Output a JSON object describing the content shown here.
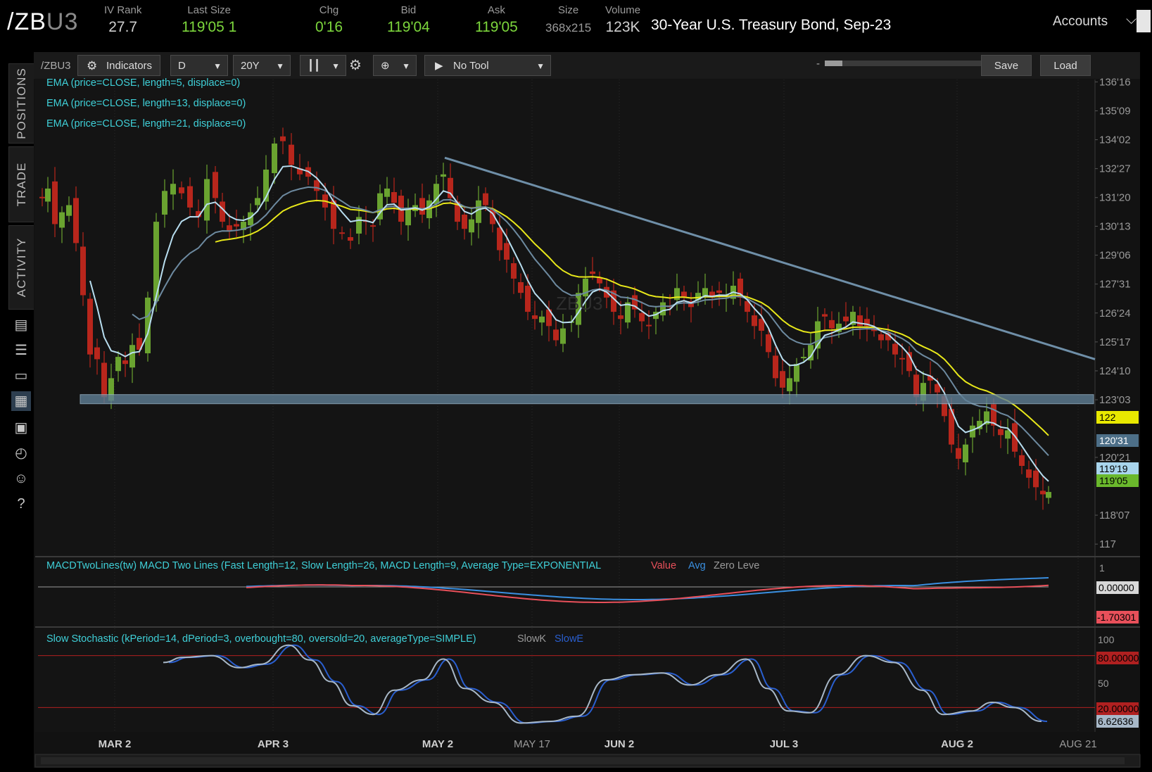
{
  "header": {
    "symbol_main": "/ZB",
    "symbol_suffix": "U3",
    "quotes": [
      {
        "label": "IV Rank",
        "value": "27.7",
        "color": "#cfcfcf"
      },
      {
        "label": "Last Size",
        "value": "119'05 1",
        "color": "#7cd63c"
      },
      {
        "label": "Chg",
        "value": "0'16",
        "color": "#7cd63c"
      },
      {
        "label": "Bid",
        "value": "119'04",
        "color": "#7cd63c"
      },
      {
        "label": "Ask",
        "value": "119'05",
        "color": "#7cd63c"
      },
      {
        "label": "Size",
        "value": "368x215",
        "color": "#9a9a9a"
      },
      {
        "label": "Volume",
        "value": "123K",
        "color": "#cfcfcf"
      }
    ],
    "description": "30-Year U.S. Treasury Bond, Sep-23",
    "accounts_label": "Accounts"
  },
  "sidebar": {
    "tabs": [
      "POSITIONS",
      "TRADE",
      "ACTIVITY"
    ],
    "icons": [
      "news-icon",
      "watchlist-icon",
      "tv-icon",
      "chart-icon",
      "grid-icon",
      "clock-icon",
      "people-icon",
      "help-icon"
    ]
  },
  "toolbar": {
    "symbol": "/ZBU3",
    "indicators": "Indicators",
    "aggregation": "D",
    "timeframe": "20Y",
    "drawing_tool": "No Tool",
    "zoom_minus": "-",
    "zoom_plus": "+",
    "save": "Save",
    "load": "Load"
  },
  "studies": {
    "ema1": "EMA (price=CLOSE, length=5, displace=0)",
    "ema2": "EMA (price=CLOSE, length=13, displace=0)",
    "ema3": "EMA (price=CLOSE, length=21, displace=0)",
    "macd_title": "MACDTwoLines(tw) MACD Two Lines (Fast Length=12, Slow Length=26, MACD Length=9, Average Type=EXPONENTIAL",
    "macd_value": "Value",
    "macd_avg": "Avg",
    "macd_zero": "Zero Leve",
    "stoch_title": "Slow Stochastic (kPeriod=14, dPeriod=3, overbought=80, oversold=20, averageType=SIMPLE)",
    "stoch_k": "SlowK",
    "stoch_d": "SlowE"
  },
  "watermark": "ZBU3",
  "price_axis": [
    "136'16",
    "135'09",
    "134'02",
    "132'27",
    "131'20",
    "130'13",
    "129'06",
    "127'31",
    "126'24",
    "125'17",
    "124'10",
    "123'03",
    "120'21",
    "118'07",
    "117"
  ],
  "price_badges": [
    {
      "label": "122",
      "bg": "#e8e800",
      "fg": "#000"
    },
    {
      "label": "120'31",
      "bg": "#4d6f88",
      "fg": "#fff"
    },
    {
      "label": "119'19",
      "bg": "#a8d4ec",
      "fg": "#000"
    },
    {
      "label": "119'05",
      "bg": "#6ab82c",
      "fg": "#000"
    }
  ],
  "macd_axis": {
    "top": "1",
    "zero_badge": "0.00000",
    "value_badge": "-1.70301"
  },
  "stoch_axis": {
    "top": "100",
    "ob_badge": "80.00000",
    "mid": "50",
    "os_badge": "20.00000",
    "val_badge": "6.62636"
  },
  "date_axis": [
    "MAR 2",
    "APR 3",
    "MAY 2",
    "MAY 17",
    "JUN 2",
    "JUL 3",
    "AUG 2",
    "AUG 21"
  ],
  "colors": {
    "up": "#6aa330",
    "down": "#b8261c",
    "ema5": "#b8def0",
    "ema13": "#6d8aa0",
    "ema21": "#e8e81a",
    "macd_value": "#e8505a",
    "macd_avg": "#3a8fe0",
    "trend": "#6f8fa8"
  },
  "chart_data": {
    "type": "candlestick",
    "xlabel": "",
    "ylabel": "",
    "ylim": [
      116.5,
      136.6
    ],
    "trendline": {
      "from": {
        "date": "May 2",
        "price": 133.3
      },
      "to": {
        "date": "Aug 21",
        "price": 124.8
      }
    },
    "support_level": 123.1,
    "last_price": "119'05",
    "ema_levels": {
      "ema5": "119'19",
      "ema13": "120'31",
      "ema21": "122"
    },
    "macd": {
      "zero": 0.0,
      "value": -1.70301
    },
    "stochastic": {
      "overbought": 80,
      "oversold": 20,
      "last": 6.62636
    }
  }
}
